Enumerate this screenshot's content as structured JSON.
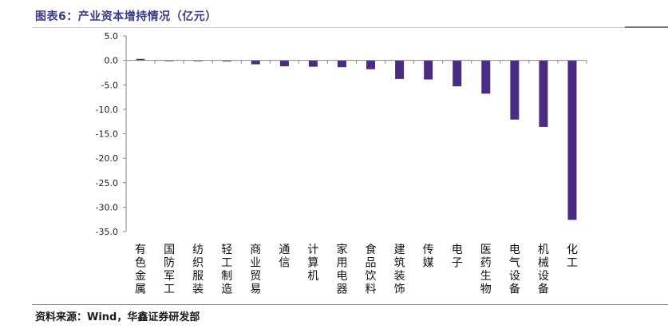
{
  "header": {
    "title": "图表6：产业资本增持情况（亿元）"
  },
  "footer": {
    "source": "资料来源：Wind，华鑫证券研发部"
  },
  "chart_data": {
    "type": "bar",
    "title": "图表6：产业资本增持情况（亿元）",
    "xlabel": "",
    "ylabel": "",
    "ylim": [
      -35,
      5
    ],
    "yticks": [
      "5.0",
      "0.0",
      "-5.0",
      "-10.0",
      "-15.0",
      "-20.0",
      "-25.0",
      "-30.0",
      "-35.0"
    ],
    "grid": false,
    "bar_color": "#4B2C83",
    "categories": [
      "有色金属",
      "国防军工",
      "纺织服装",
      "轻工制造",
      "商业贸易",
      "通信",
      "计算机",
      "家用电器",
      "食品饮料",
      "建筑装饰",
      "传媒",
      "电子",
      "医药生物",
      "电气设备",
      "机械设备",
      "化工"
    ],
    "values": [
      0.3,
      -0.1,
      -0.1,
      -0.2,
      -0.8,
      -1.2,
      -1.3,
      -1.4,
      -1.8,
      -3.8,
      -3.9,
      -5.3,
      -6.8,
      -12.1,
      -13.6,
      -32.6
    ]
  }
}
